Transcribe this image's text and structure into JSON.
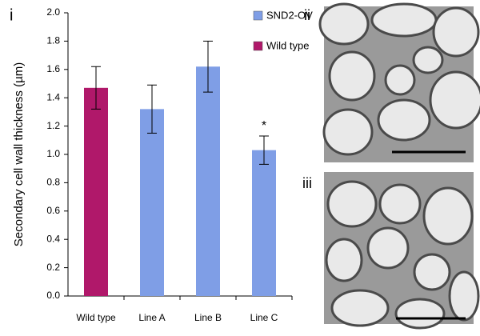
{
  "panel_labels": [
    "i",
    "ii",
    "iii"
  ],
  "chart_data": {
    "type": "bar",
    "y_label": "Secondary cell wall thickness (µm)",
    "categories": [
      "Wild type",
      "Line A",
      "Line B",
      "Line C"
    ],
    "series": [
      {
        "name": "SND2-OV",
        "color": "#7f9ee6",
        "values": [
          null,
          1.32,
          1.62,
          1.03
        ],
        "errors": [
          null,
          0.17,
          0.18,
          0.1
        ]
      },
      {
        "name": "Wild type",
        "color": "#b0186a",
        "values": [
          1.47,
          null,
          null,
          null
        ],
        "errors": [
          0.15,
          null,
          null,
          null
        ]
      }
    ],
    "annotations": [
      {
        "text": "*",
        "category": "Line C"
      }
    ],
    "ylim": [
      0,
      2
    ],
    "yticks": [
      {
        "value": 0,
        "label": "0.0"
      },
      {
        "value": 0.2,
        "label": "0.2"
      },
      {
        "value": 0.4,
        "label": "0.4"
      },
      {
        "value": 0.6,
        "label": "0.6"
      },
      {
        "value": 0.8,
        "label": "0.8"
      },
      {
        "value": 1,
        "label": "1.0"
      },
      {
        "value": 1.2,
        "label": "1.2"
      },
      {
        "value": 1.4,
        "label": "1.4"
      },
      {
        "value": 1.6,
        "label": "1.6"
      },
      {
        "value": 1.8,
        "label": "1.8"
      },
      {
        "value": 2,
        "label": "2.0"
      }
    ],
    "legend": "upper right",
    "grid": false
  }
}
